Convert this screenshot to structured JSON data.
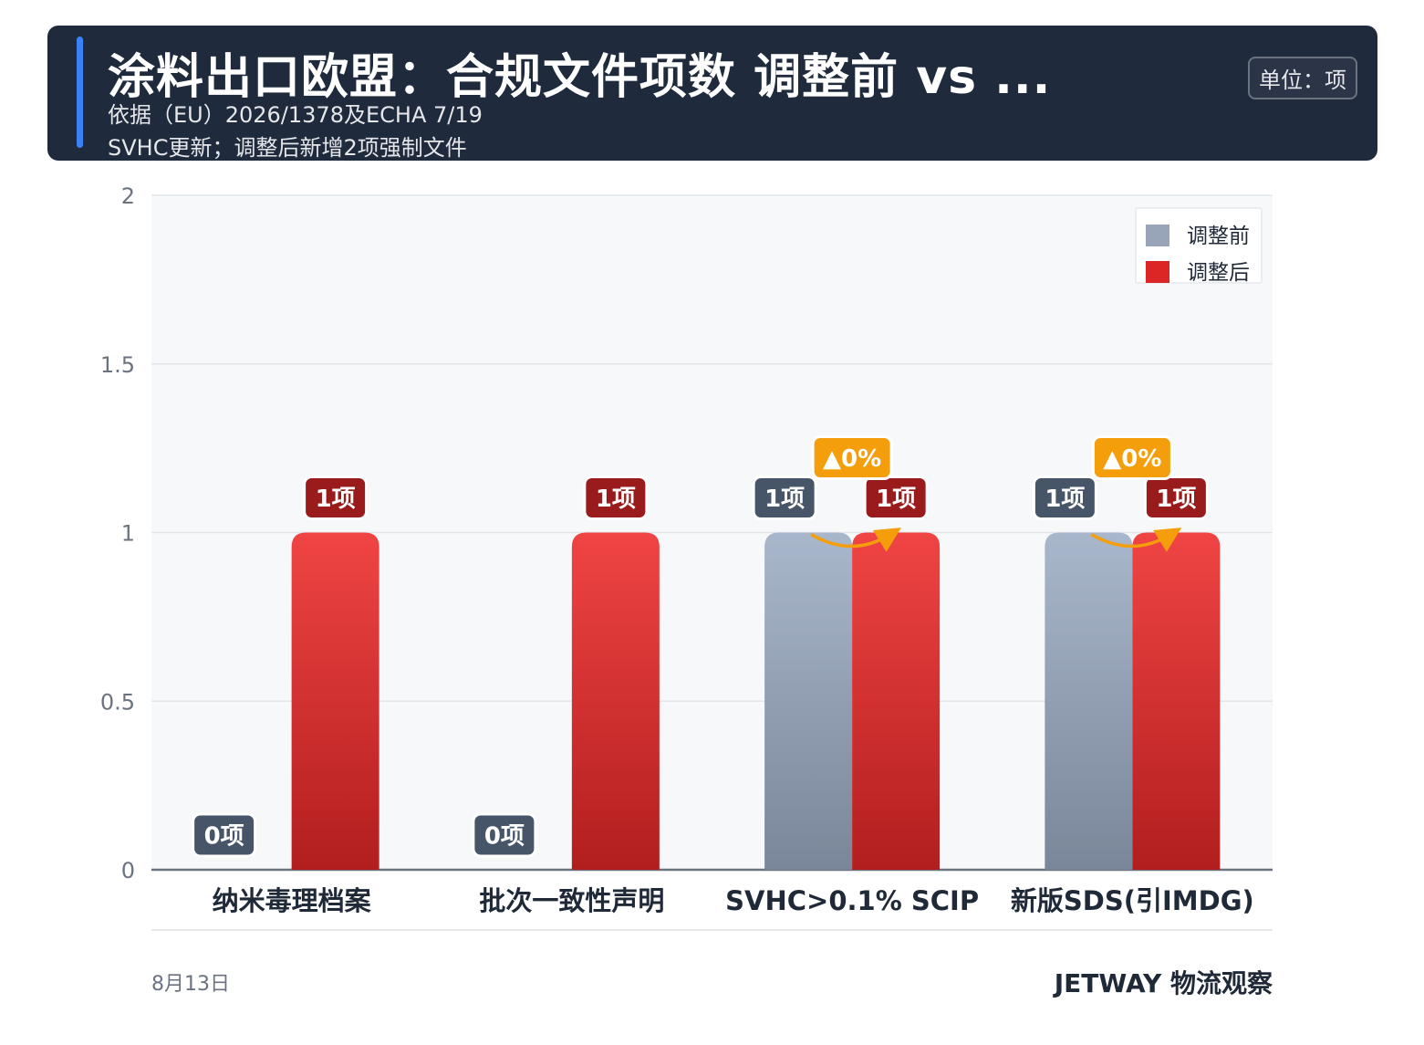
{
  "header": {
    "title": "涂料出口欧盟：合规文件项数 调整前 vs ...",
    "subtitle_line1": "依据（EU）2026/1378及ECHA 7/19",
    "subtitle_line2": "SVHC更新；调整后新增2项强制文件",
    "unit": "单位：项"
  },
  "footer": {
    "date": "8月13日",
    "brand": "JETWAY 物流观察"
  },
  "colors": {
    "before_top": "#a9b7cc",
    "before_bottom": "#7a8699",
    "after_top": "#f04444",
    "after_bottom": "#b21e1e",
    "before_label_bg": "#475569",
    "after_label_bg": "#991b1b",
    "change_badge_bg": "#f59e0b",
    "plot_bg": "#f7f8fa"
  },
  "chart_data": {
    "type": "bar",
    "categories": [
      "纳米毒理档案",
      "批次一致性声明",
      "SVHC>0.1% SCIP",
      "新版SDS(引IMDG)"
    ],
    "series": [
      {
        "name": "调整前",
        "values": [
          0,
          0,
          1,
          1
        ],
        "labels": [
          "0项",
          "0项",
          "1项",
          "1项"
        ]
      },
      {
        "name": "调整后",
        "values": [
          1,
          1,
          1,
          1
        ],
        "labels": [
          "1项",
          "1项",
          "1项",
          "1项"
        ]
      }
    ],
    "change_labels": [
      "",
      "",
      "▲0%",
      "▲0%"
    ],
    "yticks": [
      "0",
      "0.5",
      "1",
      "1.5",
      "2"
    ],
    "ylim": [
      0,
      2
    ],
    "grid": true,
    "legend": "top-right"
  }
}
